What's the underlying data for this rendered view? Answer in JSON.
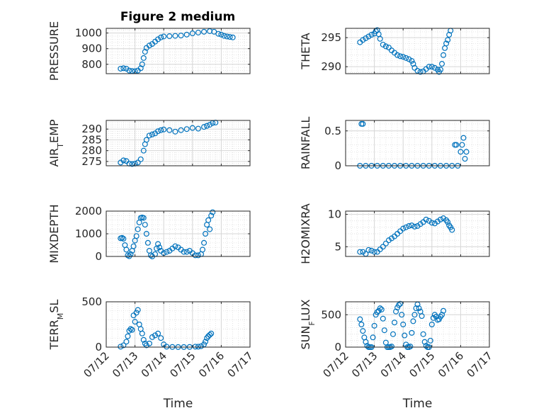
{
  "title": "Figure 2 medium",
  "x_tick_labels": [
    "07/12",
    "07/13",
    "07/14",
    "07/15",
    "07/16",
    "07/17"
  ],
  "colors": {
    "marker": "#0072bd",
    "axis": "#262626",
    "grid": "#d9d9d9"
  },
  "chart_data": [
    {
      "type": "scatter",
      "ylabel": "PRESSURE",
      "xlabel": "",
      "xlim": [
        12,
        17
      ],
      "ylim": [
        740,
        1030
      ],
      "yticks": [
        800,
        900,
        1000
      ],
      "points": [
        [
          12.5,
          772
        ],
        [
          12.6,
          775
        ],
        [
          12.7,
          772
        ],
        [
          12.8,
          760
        ],
        [
          12.9,
          757
        ],
        [
          13.0,
          756
        ],
        [
          13.1,
          760
        ],
        [
          13.2,
          775
        ],
        [
          13.25,
          800
        ],
        [
          13.3,
          840
        ],
        [
          13.35,
          880
        ],
        [
          13.4,
          905
        ],
        [
          13.5,
          920
        ],
        [
          13.6,
          930
        ],
        [
          13.7,
          945
        ],
        [
          13.8,
          960
        ],
        [
          13.9,
          972
        ],
        [
          14.0,
          978
        ],
        [
          14.2,
          980
        ],
        [
          14.4,
          982
        ],
        [
          14.6,
          984
        ],
        [
          14.8,
          990
        ],
        [
          15.0,
          998
        ],
        [
          15.2,
          1003
        ],
        [
          15.4,
          1008
        ],
        [
          15.6,
          1012
        ],
        [
          15.75,
          1008
        ],
        [
          15.9,
          995
        ],
        [
          16.0,
          990
        ],
        [
          16.1,
          982
        ],
        [
          16.2,
          978
        ],
        [
          16.3,
          975
        ],
        [
          16.4,
          972
        ]
      ]
    },
    {
      "type": "scatter",
      "ylabel": "THETA",
      "xlabel": "",
      "xlim": [
        12,
        17
      ],
      "ylim": [
        288.8,
        296.6
      ],
      "yticks": [
        290,
        295
      ],
      "points": [
        [
          12.5,
          294.2
        ],
        [
          12.6,
          294.6
        ],
        [
          12.7,
          294.9
        ],
        [
          12.8,
          295.2
        ],
        [
          12.9,
          295.5
        ],
        [
          13.0,
          295.7
        ],
        [
          13.05,
          296.1
        ],
        [
          13.1,
          296.3
        ],
        [
          13.15,
          295.6
        ],
        [
          13.2,
          294.8
        ],
        [
          13.3,
          293.8
        ],
        [
          13.4,
          293.5
        ],
        [
          13.5,
          293.3
        ],
        [
          13.6,
          292.8
        ],
        [
          13.7,
          292.4
        ],
        [
          13.8,
          292.0
        ],
        [
          13.9,
          291.8
        ],
        [
          14.0,
          291.7
        ],
        [
          14.1,
          291.5
        ],
        [
          14.2,
          291.3
        ],
        [
          14.3,
          291.0
        ],
        [
          14.35,
          290.5
        ],
        [
          14.4,
          289.8
        ],
        [
          14.5,
          289.3
        ],
        [
          14.6,
          289.1
        ],
        [
          14.7,
          289.2
        ],
        [
          14.8,
          289.6
        ],
        [
          14.9,
          290.0
        ],
        [
          15.0,
          290.0
        ],
        [
          15.1,
          289.8
        ],
        [
          15.2,
          289.5
        ],
        [
          15.25,
          289.1
        ],
        [
          15.3,
          289.5
        ],
        [
          15.35,
          290.5
        ],
        [
          15.4,
          292.0
        ],
        [
          15.45,
          293.2
        ],
        [
          15.5,
          294.0
        ],
        [
          15.55,
          294.6
        ],
        [
          15.6,
          295.5
        ],
        [
          15.65,
          296.2
        ]
      ]
    },
    {
      "type": "scatter",
      "ylabel": "AIR_TEMP",
      "xlabel": "",
      "xlim": [
        12,
        17
      ],
      "ylim": [
        273,
        294
      ],
      "yticks": [
        275,
        280,
        285,
        290
      ],
      "points": [
        [
          12.5,
          274.5
        ],
        [
          12.6,
          275.5
        ],
        [
          12.7,
          275.2
        ],
        [
          12.8,
          274.0
        ],
        [
          12.9,
          273.8
        ],
        [
          13.0,
          274.0
        ],
        [
          13.1,
          274.5
        ],
        [
          13.2,
          276.0
        ],
        [
          13.3,
          280.0
        ],
        [
          13.35,
          283.0
        ],
        [
          13.4,
          285.0
        ],
        [
          13.5,
          287.0
        ],
        [
          13.6,
          287.5
        ],
        [
          13.7,
          288.0
        ],
        [
          13.8,
          289.0
        ],
        [
          13.9,
          289.5
        ],
        [
          14.0,
          289.8
        ],
        [
          14.2,
          289.5
        ],
        [
          14.4,
          288.8
        ],
        [
          14.6,
          289.5
        ],
        [
          14.8,
          290.0
        ],
        [
          15.0,
          290.5
        ],
        [
          15.2,
          290.2
        ],
        [
          15.4,
          291.0
        ],
        [
          15.5,
          291.5
        ],
        [
          15.6,
          292.0
        ],
        [
          15.7,
          292.8
        ],
        [
          15.8,
          293.0
        ]
      ]
    },
    {
      "type": "scatter",
      "ylabel": "RAINFALL",
      "xlabel": "",
      "xlim": [
        12,
        17
      ],
      "ylim": [
        0,
        0.65
      ],
      "yticks": [
        0,
        0.5
      ],
      "points": [
        [
          12.5,
          0
        ],
        [
          12.55,
          0.6
        ],
        [
          12.6,
          0.6
        ],
        [
          12.7,
          0
        ],
        [
          12.9,
          0
        ],
        [
          13.1,
          0
        ],
        [
          13.3,
          0
        ],
        [
          13.5,
          0
        ],
        [
          13.7,
          0
        ],
        [
          13.9,
          0
        ],
        [
          14.1,
          0
        ],
        [
          14.3,
          0
        ],
        [
          14.5,
          0
        ],
        [
          14.7,
          0
        ],
        [
          14.9,
          0
        ],
        [
          15.1,
          0
        ],
        [
          15.3,
          0
        ],
        [
          15.5,
          0
        ],
        [
          15.7,
          0
        ],
        [
          15.8,
          0.3
        ],
        [
          15.85,
          0.3
        ],
        [
          15.9,
          0
        ],
        [
          16.0,
          0.2
        ],
        [
          16.05,
          0.3
        ],
        [
          16.1,
          0.4
        ],
        [
          16.15,
          0.1
        ],
        [
          16.2,
          0.2
        ]
      ]
    },
    {
      "type": "scatter",
      "ylabel": "MIXDEPTH",
      "xlabel": "",
      "xlim": [
        12,
        17
      ],
      "ylim": [
        0,
        2000
      ],
      "yticks": [
        0,
        1000,
        2000
      ],
      "points": [
        [
          12.5,
          800
        ],
        [
          12.55,
          820
        ],
        [
          12.6,
          780
        ],
        [
          12.65,
          500
        ],
        [
          12.7,
          300
        ],
        [
          12.75,
          50
        ],
        [
          12.8,
          10
        ],
        [
          12.85,
          100
        ],
        [
          12.9,
          250
        ],
        [
          12.95,
          450
        ],
        [
          13.0,
          700
        ],
        [
          13.05,
          900
        ],
        [
          13.1,
          1200
        ],
        [
          13.15,
          1500
        ],
        [
          13.2,
          1700
        ],
        [
          13.25,
          1720
        ],
        [
          13.3,
          1700
        ],
        [
          13.35,
          1400
        ],
        [
          13.4,
          1000
        ],
        [
          13.45,
          600
        ],
        [
          13.5,
          250
        ],
        [
          13.55,
          50
        ],
        [
          13.6,
          0
        ],
        [
          13.7,
          100
        ],
        [
          13.75,
          350
        ],
        [
          13.8,
          550
        ],
        [
          13.85,
          400
        ],
        [
          13.9,
          250
        ],
        [
          14.0,
          150
        ],
        [
          14.1,
          200
        ],
        [
          14.2,
          250
        ],
        [
          14.3,
          350
        ],
        [
          14.4,
          450
        ],
        [
          14.5,
          400
        ],
        [
          14.6,
          300
        ],
        [
          14.7,
          200
        ],
        [
          14.8,
          200
        ],
        [
          14.9,
          250
        ],
        [
          15.0,
          150
        ],
        [
          15.1,
          50
        ],
        [
          15.2,
          50
        ],
        [
          15.3,
          100
        ],
        [
          15.35,
          300
        ],
        [
          15.4,
          600
        ],
        [
          15.45,
          1000
        ],
        [
          15.5,
          1400
        ],
        [
          15.55,
          1600
        ],
        [
          15.6,
          1200
        ],
        [
          15.65,
          1800
        ],
        [
          15.7,
          1950
        ]
      ]
    },
    {
      "type": "scatter",
      "ylabel": "H2OMIXRA",
      "xlabel": "",
      "xlim": [
        12,
        17
      ],
      "ylim": [
        3.5,
        10.5
      ],
      "yticks": [
        5,
        10
      ],
      "points": [
        [
          12.5,
          4.2
        ],
        [
          12.6,
          4.2
        ],
        [
          12.7,
          3.9
        ],
        [
          12.8,
          4.5
        ],
        [
          12.9,
          4.4
        ],
        [
          13.0,
          4.2
        ],
        [
          13.1,
          4.2
        ],
        [
          13.2,
          4.6
        ],
        [
          13.3,
          5.0
        ],
        [
          13.4,
          5.5
        ],
        [
          13.5,
          6.0
        ],
        [
          13.6,
          6.3
        ],
        [
          13.7,
          6.6
        ],
        [
          13.8,
          7.0
        ],
        [
          13.9,
          7.4
        ],
        [
          14.0,
          7.8
        ],
        [
          14.1,
          8.0
        ],
        [
          14.2,
          8.2
        ],
        [
          14.3,
          8.3
        ],
        [
          14.4,
          8.1
        ],
        [
          14.5,
          8.2
        ],
        [
          14.6,
          8.5
        ],
        [
          14.7,
          8.8
        ],
        [
          14.8,
          9.2
        ],
        [
          14.9,
          9.0
        ],
        [
          15.0,
          8.7
        ],
        [
          15.1,
          8.6
        ],
        [
          15.2,
          8.9
        ],
        [
          15.3,
          9.2
        ],
        [
          15.4,
          9.4
        ],
        [
          15.5,
          9.1
        ],
        [
          15.55,
          8.8
        ],
        [
          15.6,
          8.3
        ],
        [
          15.65,
          8.0
        ],
        [
          15.7,
          7.6
        ]
      ]
    },
    {
      "type": "scatter",
      "ylabel": "TERR_MSL",
      "xlabel": "Time",
      "xlim": [
        12,
        17
      ],
      "ylim": [
        0,
        500
      ],
      "yticks": [
        0,
        500
      ],
      "points": [
        [
          12.5,
          5
        ],
        [
          12.6,
          20
        ],
        [
          12.7,
          60
        ],
        [
          12.75,
          120
        ],
        [
          12.8,
          180
        ],
        [
          12.85,
          200
        ],
        [
          12.9,
          190
        ],
        [
          12.95,
          350
        ],
        [
          13.0,
          280
        ],
        [
          13.05,
          380
        ],
        [
          13.1,
          410
        ],
        [
          13.15,
          250
        ],
        [
          13.2,
          200
        ],
        [
          13.25,
          150
        ],
        [
          13.3,
          80
        ],
        [
          13.35,
          40
        ],
        [
          13.4,
          20
        ],
        [
          13.5,
          40
        ],
        [
          13.6,
          110
        ],
        [
          13.7,
          130
        ],
        [
          13.8,
          150
        ],
        [
          13.9,
          100
        ],
        [
          14.0,
          30
        ],
        [
          14.1,
          5
        ],
        [
          14.3,
          2
        ],
        [
          14.5,
          1
        ],
        [
          14.7,
          1
        ],
        [
          14.9,
          2
        ],
        [
          15.1,
          5
        ],
        [
          15.2,
          5
        ],
        [
          15.3,
          10
        ],
        [
          15.4,
          30
        ],
        [
          15.45,
          60
        ],
        [
          15.5,
          100
        ],
        [
          15.55,
          120
        ],
        [
          15.6,
          135
        ],
        [
          15.65,
          150
        ]
      ]
    },
    {
      "type": "scatter",
      "ylabel": "SUN_FLUX",
      "xlabel": "Time",
      "xlim": [
        12,
        17
      ],
      "ylim": [
        0,
        700
      ],
      "yticks": [
        0,
        500
      ],
      "points": [
        [
          12.5,
          430
        ],
        [
          12.55,
          350
        ],
        [
          12.6,
          250
        ],
        [
          12.65,
          150
        ],
        [
          12.7,
          80
        ],
        [
          12.75,
          20
        ],
        [
          12.8,
          0
        ],
        [
          12.85,
          0
        ],
        [
          12.9,
          0
        ],
        [
          12.95,
          150
        ],
        [
          13.0,
          330
        ],
        [
          13.05,
          500
        ],
        [
          13.1,
          540
        ],
        [
          13.15,
          560
        ],
        [
          13.2,
          600
        ],
        [
          13.25,
          580
        ],
        [
          13.3,
          440
        ],
        [
          13.35,
          260
        ],
        [
          13.4,
          70
        ],
        [
          13.45,
          0
        ],
        [
          13.5,
          0
        ],
        [
          13.55,
          0
        ],
        [
          13.6,
          10
        ],
        [
          13.65,
          200
        ],
        [
          13.7,
          380
        ],
        [
          13.75,
          550
        ],
        [
          13.8,
          610
        ],
        [
          13.85,
          650
        ],
        [
          13.9,
          670
        ],
        [
          13.95,
          500
        ],
        [
          14.0,
          350
        ],
        [
          14.05,
          180
        ],
        [
          14.1,
          40
        ],
        [
          14.15,
          0
        ],
        [
          14.2,
          0
        ],
        [
          14.25,
          10
        ],
        [
          14.3,
          220
        ],
        [
          14.35,
          400
        ],
        [
          14.4,
          500
        ],
        [
          14.45,
          600
        ],
        [
          14.5,
          660
        ],
        [
          14.55,
          600
        ],
        [
          14.6,
          550
        ],
        [
          14.65,
          480
        ],
        [
          14.7,
          200
        ],
        [
          14.75,
          80
        ],
        [
          14.8,
          20
        ],
        [
          14.85,
          0
        ],
        [
          14.9,
          0
        ],
        [
          14.95,
          100
        ],
        [
          15.0,
          350
        ],
        [
          15.05,
          450
        ],
        [
          15.1,
          500
        ],
        [
          15.15,
          470
        ],
        [
          15.2,
          420
        ],
        [
          15.25,
          430
        ],
        [
          15.3,
          470
        ],
        [
          15.35,
          500
        ],
        [
          15.4,
          560
        ]
      ]
    }
  ]
}
